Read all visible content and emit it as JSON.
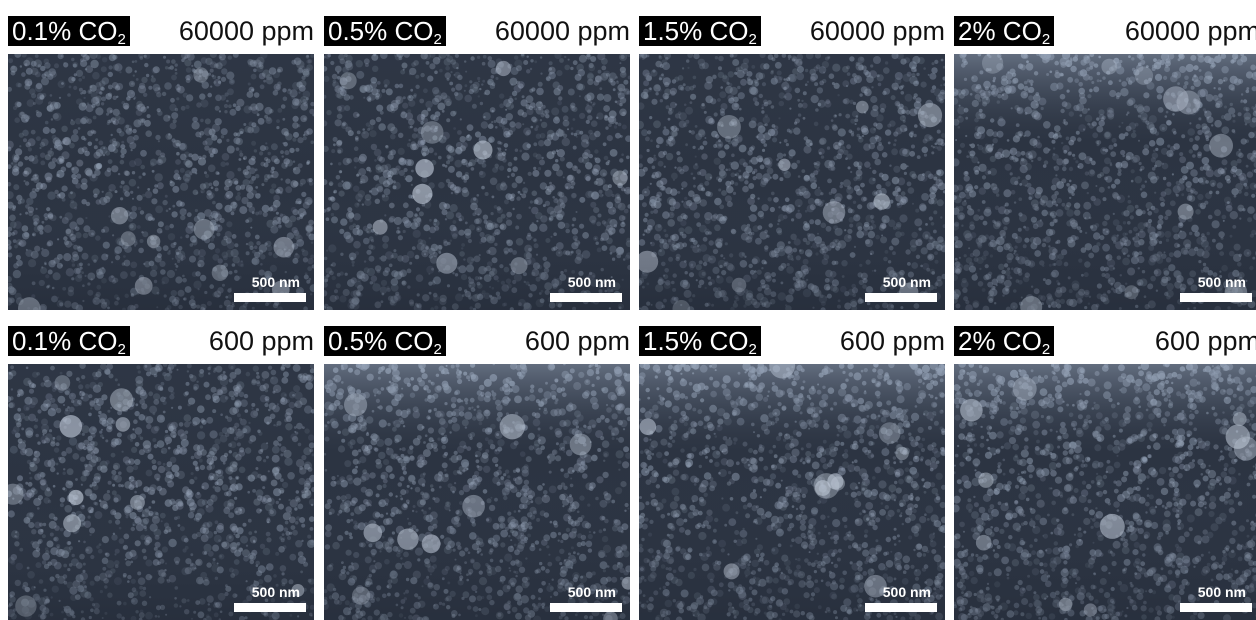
{
  "panels": [
    {
      "concentration": "0.1% CO",
      "subscript": "2",
      "ppm": "60000 ppm",
      "scale": "500 nm",
      "brightness": "uniform"
    },
    {
      "concentration": "0.5% CO",
      "subscript": "2",
      "ppm": "60000 ppm",
      "scale": "500 nm",
      "brightness": "uniform"
    },
    {
      "concentration": "1.5% CO",
      "subscript": "2",
      "ppm": "60000 ppm",
      "scale": "500 nm",
      "brightness": "uniform"
    },
    {
      "concentration": "2% CO",
      "subscript": "2",
      "ppm": "60000 ppm",
      "scale": "500 nm",
      "brightness": "bright-top"
    },
    {
      "concentration": "0.1% CO",
      "subscript": "2",
      "ppm": "600 ppm",
      "scale": "500 nm",
      "brightness": "uniform"
    },
    {
      "concentration": "0.5% CO",
      "subscript": "2",
      "ppm": "600 ppm",
      "scale": "500 nm",
      "brightness": "bright-top"
    },
    {
      "concentration": "1.5% CO",
      "subscript": "2",
      "ppm": "600 ppm",
      "scale": "500 nm",
      "brightness": "bright-top"
    },
    {
      "concentration": "2% CO",
      "subscript": "2",
      "ppm": "600 ppm",
      "scale": "500 nm",
      "brightness": "bright-top"
    }
  ],
  "colors": {
    "background": "#323b49",
    "grain": "#9aa8bc",
    "label_bg": "#000000",
    "scale_bar": "#ffffff"
  }
}
